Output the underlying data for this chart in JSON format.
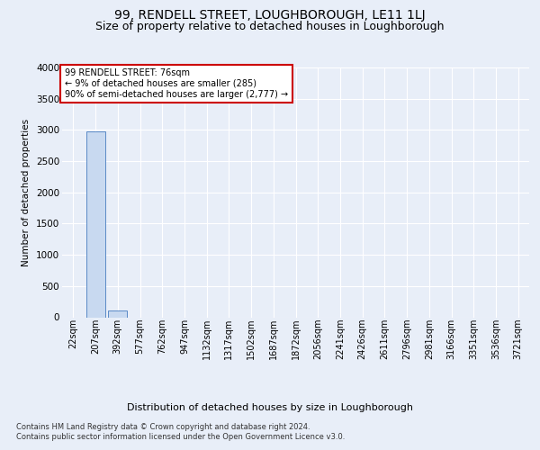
{
  "title": "99, RENDELL STREET, LOUGHBOROUGH, LE11 1LJ",
  "subtitle": "Size of property relative to detached houses in Loughborough",
  "xlabel": "Distribution of detached houses by size in Loughborough",
  "ylabel": "Number of detached properties",
  "footer_line1": "Contains HM Land Registry data © Crown copyright and database right 2024.",
  "footer_line2": "Contains public sector information licensed under the Open Government Licence v3.0.",
  "bar_labels": [
    "22sqm",
    "207sqm",
    "392sqm",
    "577sqm",
    "762sqm",
    "947sqm",
    "1132sqm",
    "1317sqm",
    "1502sqm",
    "1687sqm",
    "1872sqm",
    "2056sqm",
    "2241sqm",
    "2426sqm",
    "2611sqm",
    "2796sqm",
    "2981sqm",
    "3166sqm",
    "3351sqm",
    "3536sqm",
    "3721sqm"
  ],
  "bar_values": [
    0,
    2980,
    110,
    0,
    0,
    0,
    0,
    0,
    0,
    0,
    0,
    0,
    0,
    0,
    0,
    0,
    0,
    0,
    0,
    0,
    0
  ],
  "bar_color": "#c8d9f0",
  "bar_edge_color": "#5a8ac6",
  "annotation_text": "99 RENDELL STREET: 76sqm\n← 9% of detached houses are smaller (285)\n90% of semi-detached houses are larger (2,777) →",
  "annotation_box_color": "#ffffff",
  "annotation_border_color": "#cc0000",
  "ylim": [
    0,
    4000
  ],
  "yticks": [
    0,
    500,
    1000,
    1500,
    2000,
    2500,
    3000,
    3500,
    4000
  ],
  "bg_color": "#e8eef8",
  "plot_bg_color": "#e8eef8",
  "grid_color": "#ffffff",
  "title_fontsize": 10,
  "subtitle_fontsize": 9,
  "xlabel_fontsize": 8,
  "ylabel_fontsize": 7.5,
  "tick_fontsize": 7,
  "annotation_fontsize": 7,
  "footer_fontsize": 6
}
